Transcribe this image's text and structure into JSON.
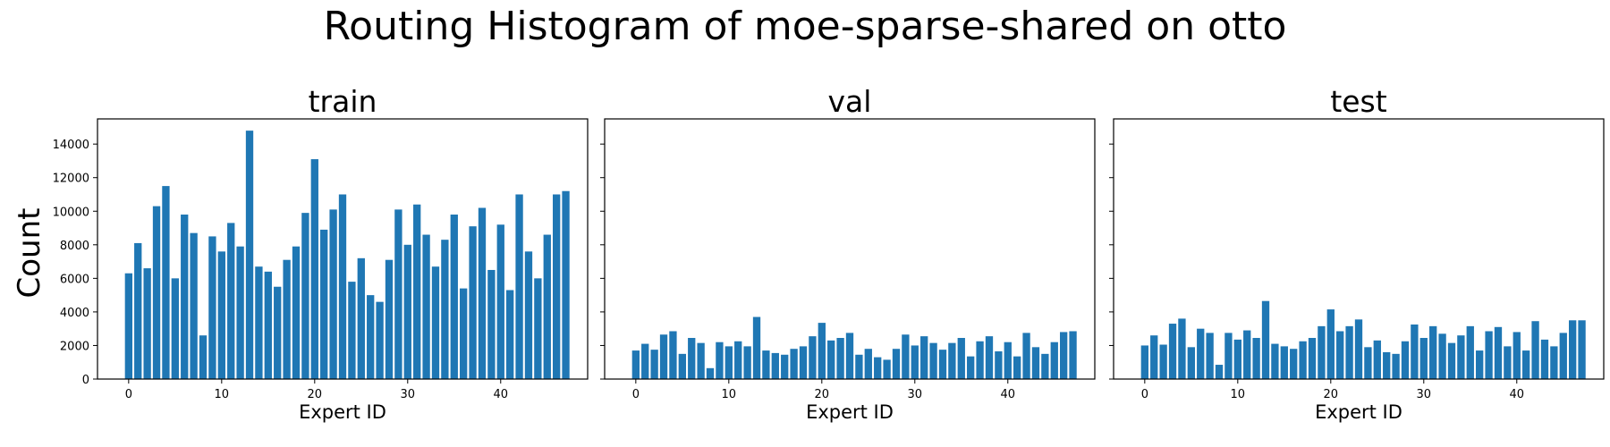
{
  "figure": {
    "title": "Routing Histogram of moe-sparse-shared on otto",
    "ylabel": "Count"
  },
  "colors": {
    "bar": "#1f77b4",
    "axis": "#000000"
  },
  "chart_data": [
    {
      "type": "bar",
      "title": "train",
      "xlabel": "Expert ID",
      "ylabel": "Count",
      "xlim": [
        -3.35,
        49.35
      ],
      "ylim": [
        0,
        15500
      ],
      "xticks": [
        0,
        10,
        20,
        30,
        40
      ],
      "yticks": [
        0,
        2000,
        4000,
        6000,
        8000,
        10000,
        12000,
        14000
      ],
      "ytick_labels_visible": true,
      "grid": false,
      "x": [
        0,
        1,
        2,
        3,
        4,
        5,
        6,
        7,
        8,
        9,
        10,
        11,
        12,
        13,
        14,
        15,
        16,
        17,
        18,
        19,
        20,
        21,
        22,
        23,
        24,
        25,
        26,
        27,
        28,
        29,
        30,
        31,
        32,
        33,
        34,
        35,
        36,
        37,
        38,
        39,
        40,
        41,
        42,
        43,
        44,
        45,
        46,
        47
      ],
      "values": [
        6300,
        8100,
        6600,
        10300,
        11500,
        6000,
        9800,
        8700,
        2600,
        8500,
        7600,
        9300,
        7900,
        14800,
        6700,
        6400,
        5500,
        7100,
        7900,
        9900,
        13100,
        8900,
        10100,
        11000,
        5800,
        7200,
        5000,
        4600,
        7100,
        10100,
        8000,
        10400,
        8600,
        6700,
        8300,
        9800,
        5400,
        9100,
        10200,
        6500,
        9200,
        5300,
        11000,
        7600,
        6000,
        8600,
        11000,
        11200
      ]
    },
    {
      "type": "bar",
      "title": "val",
      "xlabel": "Expert ID",
      "ylabel": "",
      "xlim": [
        -3.35,
        49.35
      ],
      "ylim": [
        0,
        15500
      ],
      "xticks": [
        0,
        10,
        20,
        30,
        40
      ],
      "yticks": [
        0,
        2000,
        4000,
        6000,
        8000,
        10000,
        12000,
        14000
      ],
      "ytick_labels_visible": false,
      "grid": false,
      "x": [
        0,
        1,
        2,
        3,
        4,
        5,
        6,
        7,
        8,
        9,
        10,
        11,
        12,
        13,
        14,
        15,
        16,
        17,
        18,
        19,
        20,
        21,
        22,
        23,
        24,
        25,
        26,
        27,
        28,
        29,
        30,
        31,
        32,
        33,
        34,
        35,
        36,
        37,
        38,
        39,
        40,
        41,
        42,
        43,
        44,
        45,
        46,
        47
      ],
      "values": [
        1700,
        2100,
        1750,
        2650,
        2850,
        1500,
        2450,
        2150,
        650,
        2200,
        1950,
        2250,
        1950,
        3700,
        1700,
        1550,
        1450,
        1800,
        1950,
        2550,
        3350,
        2300,
        2450,
        2750,
        1450,
        1800,
        1300,
        1150,
        1800,
        2650,
        2000,
        2550,
        2150,
        1750,
        2150,
        2450,
        1350,
        2250,
        2550,
        1650,
        2200,
        1350,
        2750,
        1900,
        1500,
        2200,
        2800,
        2850
      ]
    },
    {
      "type": "bar",
      "title": "test",
      "xlabel": "Expert ID",
      "ylabel": "",
      "xlim": [
        -3.35,
        49.35
      ],
      "ylim": [
        0,
        15500
      ],
      "xticks": [
        0,
        10,
        20,
        30,
        40
      ],
      "yticks": [
        0,
        2000,
        4000,
        6000,
        8000,
        10000,
        12000,
        14000
      ],
      "ytick_labels_visible": false,
      "grid": false,
      "x": [
        0,
        1,
        2,
        3,
        4,
        5,
        6,
        7,
        8,
        9,
        10,
        11,
        12,
        13,
        14,
        15,
        16,
        17,
        18,
        19,
        20,
        21,
        22,
        23,
        24,
        25,
        26,
        27,
        28,
        29,
        30,
        31,
        32,
        33,
        34,
        35,
        36,
        37,
        38,
        39,
        40,
        41,
        42,
        43,
        44,
        45,
        46,
        47
      ],
      "values": [
        2000,
        2600,
        2050,
        3300,
        3600,
        1900,
        3000,
        2750,
        850,
        2750,
        2350,
        2900,
        2450,
        4650,
        2100,
        1950,
        1800,
        2250,
        2450,
        3150,
        4150,
        2850,
        3150,
        3550,
        1900,
        2300,
        1600,
        1500,
        2250,
        3250,
        2450,
        3150,
        2700,
        2150,
        2600,
        3150,
        1700,
        2850,
        3100,
        1950,
        2800,
        1700,
        3450,
        2350,
        1950,
        2750,
        3500,
        3500
      ]
    }
  ]
}
